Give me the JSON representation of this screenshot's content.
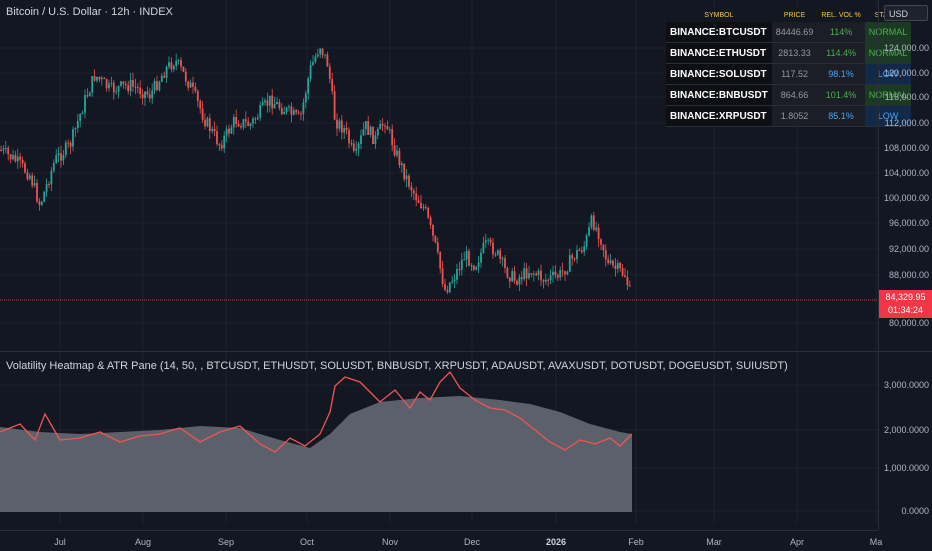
{
  "chart": {
    "title": "Bitcoin / U.S. Dollar · 12h · INDEX",
    "currency": "USD",
    "last_price": "84,329.95",
    "countdown": "01:34:24",
    "price_ticks": [
      "124,000.00",
      "120,000.00",
      "116,000.00",
      "112,000.00",
      "108,000.00",
      "104,000.00",
      "100,000.00",
      "96,000.00",
      "92,000.00",
      "88,000.00",
      "80,000.00"
    ],
    "x_ticks": [
      "Jul",
      "Aug",
      "Sep",
      "Oct",
      "Nov",
      "Dec",
      "2026",
      "Feb",
      "Mar",
      "Apr",
      "Ma"
    ]
  },
  "indicator": {
    "title": "Volatility Heatmap & ATR Pane (14, 50, , BTCUSDT, ETHUSDT, SOLUSDT, BNBUSDT, XRPUSDT, ADAUSDT, AVAXUSDT, DOTUSDT, DOGEUSDT, SUIUSDT)",
    "ticks": [
      "3,000.0000",
      "2,000.0000",
      "1,000.0000",
      "0.0000"
    ]
  },
  "table": {
    "headers": [
      "SYMBOL",
      "PRICE",
      "REL. VOL %",
      "STATUS"
    ],
    "rows": [
      {
        "symbol": "BINANCE:BTCUSDT",
        "price": "84446.69",
        "relvol": "114%",
        "status": "NORMAL"
      },
      {
        "symbol": "BINANCE:ETHUSDT",
        "price": "2813.33",
        "relvol": "114.4%",
        "status": "NORMAL"
      },
      {
        "symbol": "BINANCE:SOLUSDT",
        "price": "117.52",
        "relvol": "98.1%",
        "status": "LOW"
      },
      {
        "symbol": "BINANCE:BNBUSDT",
        "price": "864.66",
        "relvol": "101.4%",
        "status": "NORMAL"
      },
      {
        "symbol": "BINANCE:XRPUSDT",
        "price": "1.8052",
        "relvol": "85.1%",
        "status": "LOW"
      }
    ]
  },
  "colors": {
    "up": "#26a69a",
    "down": "#ef5350",
    "normal_bg": "#1b3a24",
    "normal_fg": "#4caf50",
    "low_bg": "#13294a",
    "low_fg": "#42a5f5",
    "atr_line": "#f05454",
    "atr_area": "#6a6d78"
  }
}
